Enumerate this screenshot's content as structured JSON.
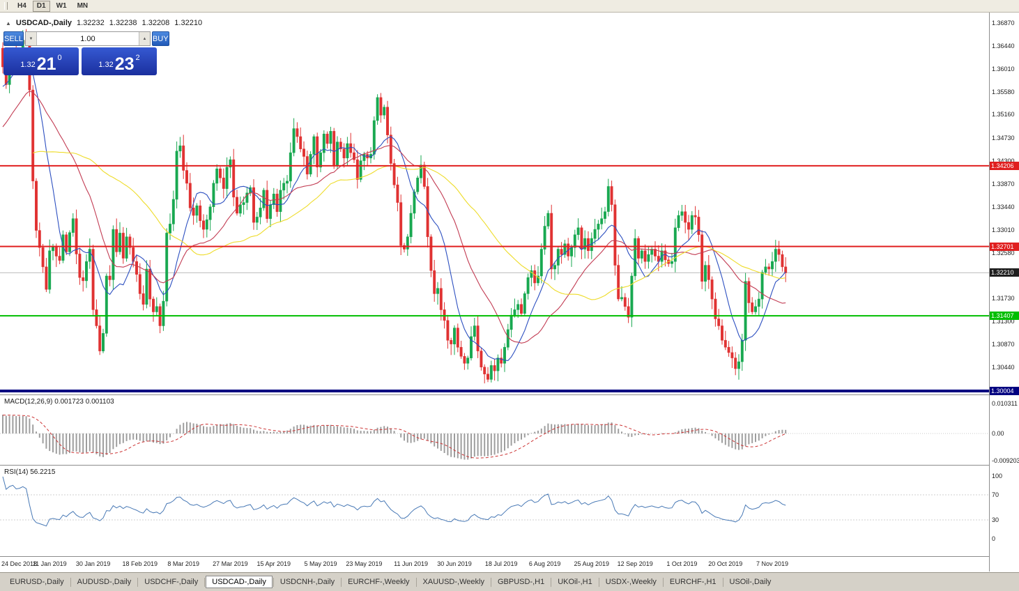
{
  "toolbar": {
    "timeframes": [
      "H4",
      "D1",
      "W1",
      "MN"
    ],
    "active": "D1"
  },
  "chart_header": {
    "symbol": "USDCAD-,Daily",
    "open": "1.32232",
    "high": "1.32238",
    "low": "1.32208",
    "close": "1.32210"
  },
  "icons": {
    "collapse": "▲",
    "volume_down": "▼",
    "volume_up": "▲"
  },
  "trade_panel": {
    "sell_label": "SELL",
    "buy_label": "BUY",
    "volume": "1.00",
    "bid": {
      "prefix": "1.32",
      "big": "21",
      "sup": "0"
    },
    "ask": {
      "prefix": "1.32",
      "big": "23",
      "sup": "2"
    }
  },
  "price_axis": {
    "labels": [
      "1.36870",
      "1.36440",
      "1.36010",
      "1.35580",
      "1.35160",
      "1.34730",
      "1.34300",
      "1.33870",
      "1.33440",
      "1.33010",
      "1.32580",
      "1.31730",
      "1.31300",
      "1.30870",
      "1.30440"
    ]
  },
  "macd_panel": {
    "label": "MACD(12,26,9) 0.001723 0.001103",
    "axis": [
      "0.010311",
      "0.00",
      "-0.009203"
    ]
  },
  "rsi_panel": {
    "label": "RSI(14) 56.2215",
    "axis": [
      "100",
      "70",
      "30",
      "0"
    ]
  },
  "chart_data": {
    "type": "candlestick",
    "symbol": "USDCAD",
    "timeframe": "Daily",
    "ylim": [
      1.2994,
      1.3706
    ],
    "up_color": "#18A850",
    "down_color": "#E03232",
    "first_open": 1.364,
    "current_price": 1.3221,
    "closes": [
      1.3605,
      1.3572,
      1.361,
      1.3633,
      1.362,
      1.3629,
      1.3655,
      1.3648,
      1.3562,
      1.3392,
      1.33,
      1.3268,
      1.3232,
      1.319,
      1.3262,
      1.327,
      1.3252,
      1.3244,
      1.3292,
      1.326,
      1.3296,
      1.3322,
      1.3256,
      1.3212,
      1.3206,
      1.3242,
      1.3265,
      1.3152,
      1.3122,
      1.3075,
      1.3108,
      1.3215,
      1.3208,
      1.3302,
      1.326,
      1.3295,
      1.3248,
      1.3288,
      1.3268,
      1.3242,
      1.3218,
      1.3182,
      1.3162,
      1.3228,
      1.3172,
      1.3148,
      1.3158,
      1.3122,
      1.3168,
      1.3295,
      1.3312,
      1.3358,
      1.3448,
      1.3458,
      1.3412,
      1.3388,
      1.3342,
      1.3328,
      1.3346,
      1.3318,
      1.3302,
      1.332,
      1.3344,
      1.3388,
      1.3415,
      1.3398,
      1.3378,
      1.3418,
      1.3432,
      1.3362,
      1.3332,
      1.3348,
      1.3352,
      1.337,
      1.338,
      1.3315,
      1.3325,
      1.3342,
      1.3375,
      1.3322,
      1.3348,
      1.3368,
      1.3335,
      1.3375,
      1.3388,
      1.3392,
      1.3445,
      1.349,
      1.3475,
      1.3452,
      1.3438,
      1.3405,
      1.3442,
      1.3475,
      1.3418,
      1.3445,
      1.348,
      1.3462,
      1.3485,
      1.3422,
      1.3465,
      1.3452,
      1.3435,
      1.3462,
      1.3445,
      1.3432,
      1.3395,
      1.343,
      1.3442,
      1.3435,
      1.3442,
      1.3505,
      1.3548,
      1.3515,
      1.353,
      1.3478,
      1.3425,
      1.3385,
      1.3352,
      1.3272,
      1.3265,
      1.3288,
      1.3332,
      1.3372,
      1.3398,
      1.3422,
      1.3382,
      1.3288,
      1.3225,
      1.3182,
      1.3192,
      1.3152,
      1.3132,
      1.3095,
      1.3088,
      1.3118,
      1.3082,
      1.3065,
      1.3052,
      1.3062,
      1.3102,
      1.3122,
      1.3075,
      1.3045,
      1.3032,
      1.3022,
      1.3048,
      1.3038,
      1.3062,
      1.3052,
      1.3082,
      1.3115,
      1.3142,
      1.3152,
      1.3162,
      1.3145,
      1.3182,
      1.3212,
      1.3225,
      1.3202,
      1.3215,
      1.3265,
      1.3308,
      1.3332,
      1.3228,
      1.3235,
      1.3265,
      1.3255,
      1.3275,
      1.3252,
      1.3268,
      1.3292,
      1.3305,
      1.3265,
      1.3285,
      1.3262,
      1.3285,
      1.3302,
      1.3312,
      1.3322,
      1.3335,
      1.3382,
      1.3348,
      1.3235,
      1.3172,
      1.3175,
      1.3158,
      1.3138,
      1.3215,
      1.3285,
      1.3248,
      1.3262,
      1.3242,
      1.3255,
      1.3265,
      1.3252,
      1.3242,
      1.3262,
      1.3245,
      1.3238,
      1.3242,
      1.3305,
      1.3328,
      1.3335,
      1.3315,
      1.3302,
      1.3328,
      1.3325,
      1.3292,
      1.3205,
      1.3235,
      1.3208,
      1.3172,
      1.3135,
      1.3122,
      1.3095,
      1.3082,
      1.3072,
      1.3062,
      1.3042,
      1.3055,
      1.3095,
      1.3205,
      1.3165,
      1.3148,
      1.3158,
      1.3172,
      1.3222,
      1.3232,
      1.3228,
      1.3242,
      1.3265,
      1.3255,
      1.3232,
      1.3221
    ],
    "hlines": [
      {
        "price": 1.34206,
        "color": "#E01F1F",
        "width": 2
      },
      {
        "price": 1.32701,
        "color": "#E01F1F",
        "width": 2
      },
      {
        "price": 1.31407,
        "color": "#00BE00",
        "width": 2
      },
      {
        "price": 1.30004,
        "color": "#000080",
        "width": 4
      }
    ],
    "overlays": [
      {
        "name": "SMA10",
        "period": 10,
        "color": "#2C4FC0"
      },
      {
        "name": "SMA25",
        "period": 25,
        "color": "#C23B52"
      },
      {
        "name": "SMA50",
        "period": 50,
        "color": "#EEDC2A"
      }
    ],
    "macd": {
      "fast": 12,
      "slow": 26,
      "signal": 9,
      "hist_color": "#9E9E9E",
      "signal_color": "#CC3333"
    },
    "rsi": {
      "period": 14,
      "levels": [
        30,
        70
      ],
      "color": "#4778B5"
    },
    "x_labels": [
      {
        "label": "24 Dec 2018",
        "i": 0
      },
      {
        "label": "11 Jan 2019",
        "i": 14
      },
      {
        "label": "30 Jan 2019",
        "i": 27
      },
      {
        "label": "18 Feb 2019",
        "i": 41
      },
      {
        "label": "8 Mar 2019",
        "i": 54
      },
      {
        "label": "27 Mar 2019",
        "i": 68
      },
      {
        "label": "15 Apr 2019",
        "i": 81
      },
      {
        "label": "5 May 2019",
        "i": 95
      },
      {
        "label": "23 May 2019",
        "i": 108
      },
      {
        "label": "11 Jun 2019",
        "i": 122
      },
      {
        "label": "30 Jun 2019",
        "i": 135
      },
      {
        "label": "18 Jul 2019",
        "i": 149
      },
      {
        "label": "6 Aug 2019",
        "i": 162
      },
      {
        "label": "25 Aug 2019",
        "i": 176
      },
      {
        "label": "12 Sep 2019",
        "i": 189
      },
      {
        "label": "1 Oct 2019",
        "i": 203
      },
      {
        "label": "20 Oct 2019",
        "i": 216
      },
      {
        "label": "7 Nov 2019",
        "i": 230
      }
    ]
  },
  "tabs": [
    {
      "label": "EURUSD-,Daily",
      "active": false
    },
    {
      "label": "AUDUSD-,Daily",
      "active": false
    },
    {
      "label": "USDCHF-,Daily",
      "active": false
    },
    {
      "label": "USDCAD-,Daily",
      "active": true
    },
    {
      "label": "USDCNH-,Daily",
      "active": false
    },
    {
      "label": "EURCHF-,Weekly",
      "active": false
    },
    {
      "label": "XAUUSD-,Weekly",
      "active": false
    },
    {
      "label": "GBPUSD-,H1",
      "active": false
    },
    {
      "label": "UKOil-,H1",
      "active": false
    },
    {
      "label": "USDX-,Weekly",
      "active": false
    },
    {
      "label": "EURCHF-,H1",
      "active": false
    },
    {
      "label": "USOil-,Daily",
      "active": false
    }
  ]
}
